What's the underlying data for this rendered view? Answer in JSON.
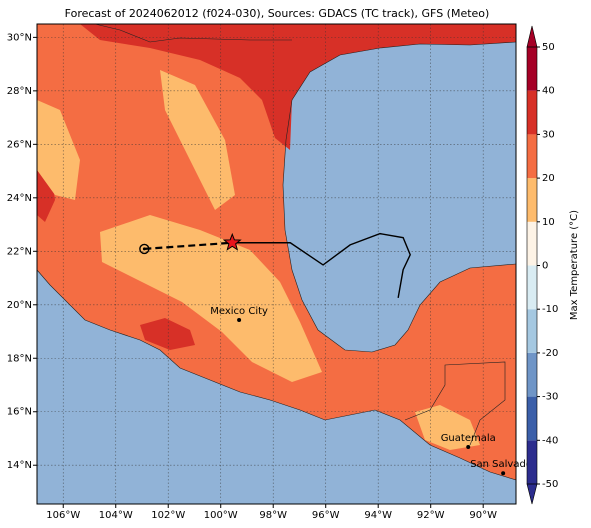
{
  "chart_data": {
    "type": "map",
    "title": "Forecast of 2024062012 (f024-030), Sources: GDACS (TC track), GFS (Meteo)",
    "xlim": [
      -107,
      -88.75
    ],
    "ylim": [
      12.55,
      30.5
    ],
    "xticks": [
      {
        "value": -106,
        "label": "106°W"
      },
      {
        "value": -104,
        "label": "104°W"
      },
      {
        "value": -102,
        "label": "102°W"
      },
      {
        "value": -100,
        "label": "100°W"
      },
      {
        "value": -98,
        "label": "98°W"
      },
      {
        "value": -96,
        "label": "96°W"
      },
      {
        "value": -94,
        "label": "94°W"
      },
      {
        "value": -92,
        "label": "92°W"
      },
      {
        "value": -90,
        "label": "90°W"
      }
    ],
    "yticks": [
      {
        "value": 14,
        "label": "14°N"
      },
      {
        "value": 16,
        "label": "16°N"
      },
      {
        "value": 18,
        "label": "18°N"
      },
      {
        "value": 20,
        "label": "20°N"
      },
      {
        "value": 22,
        "label": "22°N"
      },
      {
        "value": 24,
        "label": "24°N"
      },
      {
        "value": 26,
        "label": "26°N"
      },
      {
        "value": 28,
        "label": "28°N"
      },
      {
        "value": 30,
        "label": "30°N"
      }
    ],
    "grid": true,
    "ocean_color": "#91b3d7",
    "track_observed": {
      "lon": [
        -102.91,
        -99.56
      ],
      "lat": [
        22.09,
        22.32
      ]
    },
    "track_forecast": {
      "lon": [
        -99.56,
        -97.35,
        -96.1,
        -95.07,
        -93.93,
        -93.05,
        -92.78,
        -93.05,
        -93.24
      ],
      "lat": [
        22.32,
        22.32,
        21.49,
        22.24,
        22.66,
        22.51,
        21.87,
        21.31,
        20.26
      ]
    },
    "cities": [
      {
        "name": "Mexico City",
        "lon": -99.3,
        "lat": 19.43
      },
      {
        "name": "Guatemala",
        "lon": -90.57,
        "lat": 14.68
      },
      {
        "name": "San Salvador",
        "lon": -89.24,
        "lat": 13.7
      }
    ],
    "colorbar": {
      "label": "Max Temperature (°C)",
      "lim": [
        -50,
        50
      ],
      "ticks": [
        -50,
        -40,
        -30,
        -20,
        -10,
        0,
        10,
        20,
        30,
        40,
        50
      ],
      "colors": [
        "#2c2d8e",
        "#3b5fa9",
        "#6f95c7",
        "#a5c8e1",
        "#d9ecf3",
        "#fdf3e6",
        "#fdbb6c",
        "#f46d43",
        "#d73027",
        "#a50026"
      ]
    }
  }
}
